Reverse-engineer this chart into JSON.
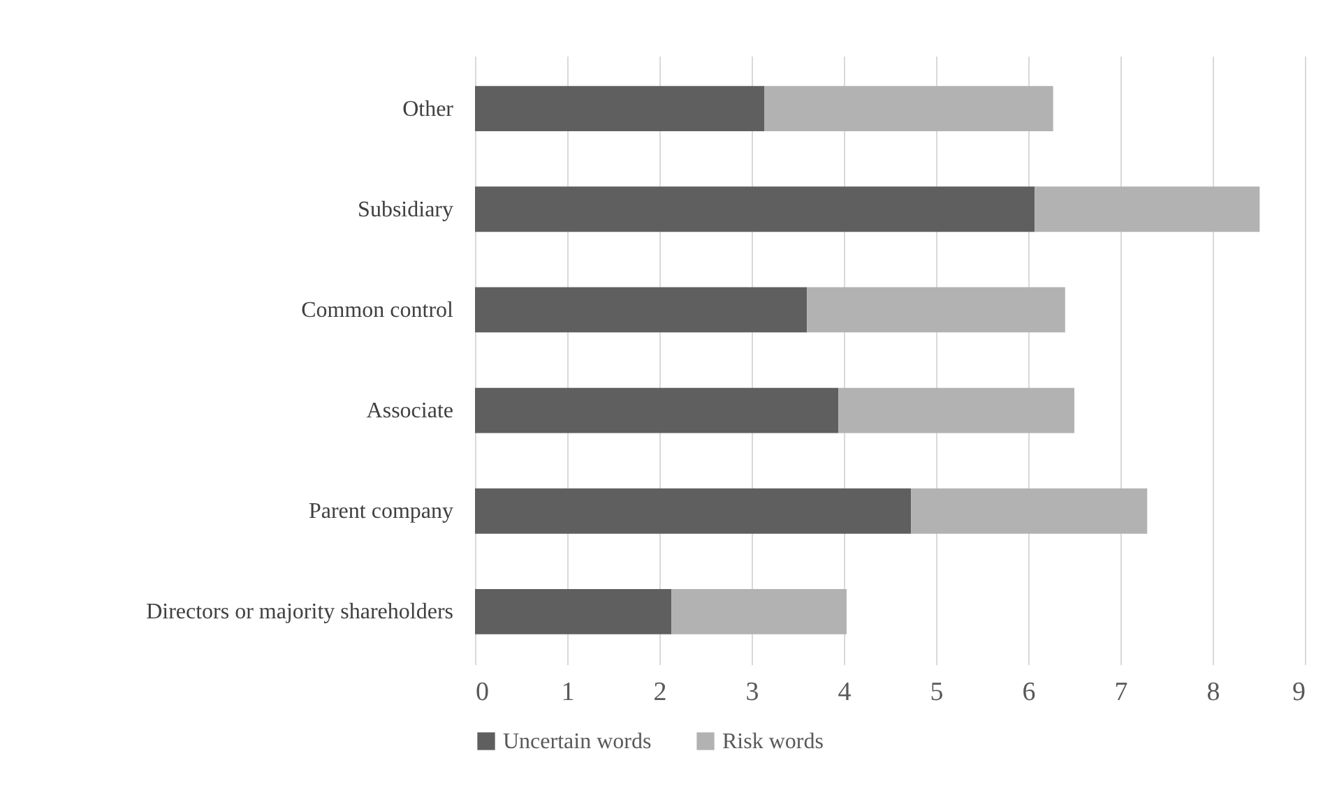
{
  "chart_data": {
    "type": "bar",
    "orientation": "horizontal",
    "stacked": true,
    "categories": [
      "Other",
      "Subsidiary",
      "Common control",
      "Associate",
      "Parent company",
      "Directors or majority shareholders"
    ],
    "series": [
      {
        "name": "Uncertain words",
        "color": "#5f5f5f",
        "values": [
          3.14,
          6.07,
          3.6,
          3.94,
          4.73,
          2.13
        ]
      },
      {
        "name": "Risk words",
        "color": "#b2b2b2",
        "values": [
          3.13,
          2.44,
          2.8,
          2.56,
          2.56,
          1.9
        ]
      }
    ],
    "xlim": [
      0,
      9
    ],
    "xticks": [
      0,
      1,
      2,
      3,
      4,
      5,
      6,
      7,
      8,
      9
    ],
    "grid": "x",
    "legend": "bottom"
  }
}
